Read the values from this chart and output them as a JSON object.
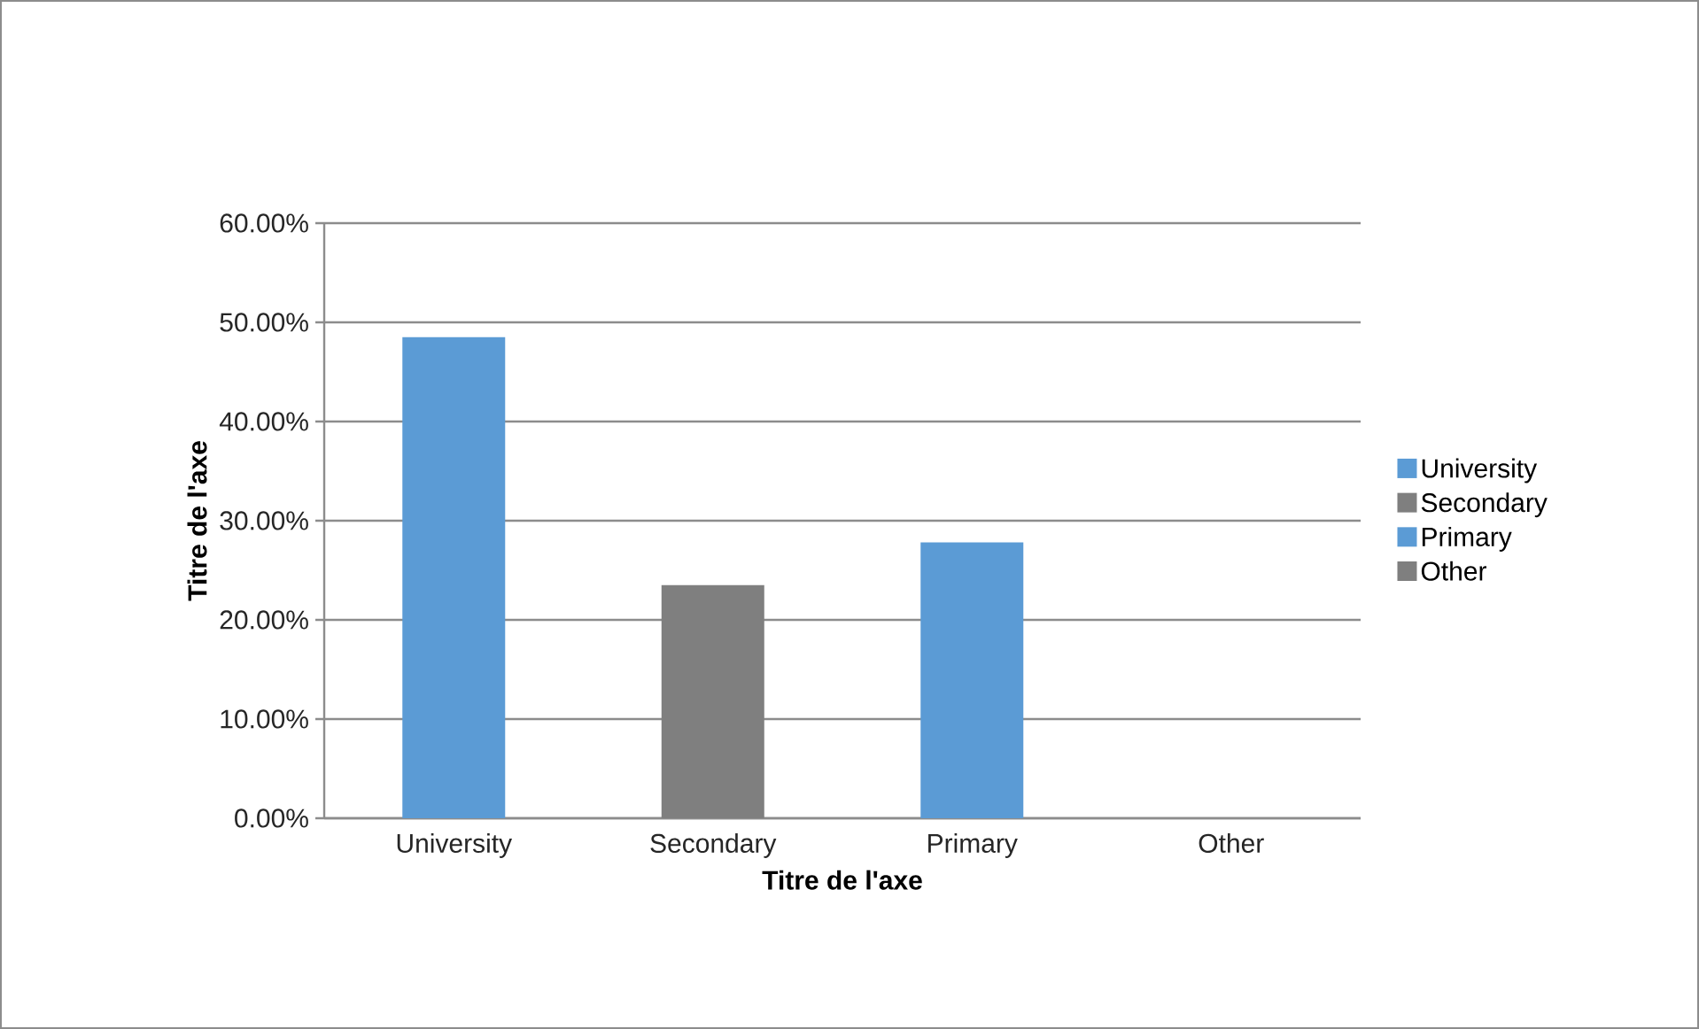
{
  "chart_data": {
    "type": "bar",
    "xlabel": "Titre de l'axe",
    "ylabel": "Titre de l'axe",
    "categories": [
      "University",
      "Secondary",
      "Primary",
      "Other"
    ],
    "series": [
      {
        "name": "University",
        "color": "#5b9bd5",
        "values": [
          48.5,
          null,
          null,
          null
        ]
      },
      {
        "name": "Secondary",
        "color": "#7f7f7f",
        "values": [
          null,
          23.5,
          null,
          null
        ]
      },
      {
        "name": "Primary",
        "color": "#5b9bd5",
        "values": [
          null,
          null,
          27.8,
          null
        ]
      },
      {
        "name": "Other",
        "color": "#7f7f7f",
        "values": [
          null,
          null,
          null,
          0
        ]
      }
    ],
    "ylim": [
      0,
      60
    ],
    "yticks": [
      {
        "value": 0,
        "label": "0.00%"
      },
      {
        "value": 10,
        "label": "10.00%"
      },
      {
        "value": 20,
        "label": "20.00%"
      },
      {
        "value": 30,
        "label": "30.00%"
      },
      {
        "value": 40,
        "label": "40.00%"
      },
      {
        "value": 50,
        "label": "50.00%"
      },
      {
        "value": 60,
        "label": "60.00%"
      }
    ],
    "grid": "y",
    "legend": "right"
  }
}
